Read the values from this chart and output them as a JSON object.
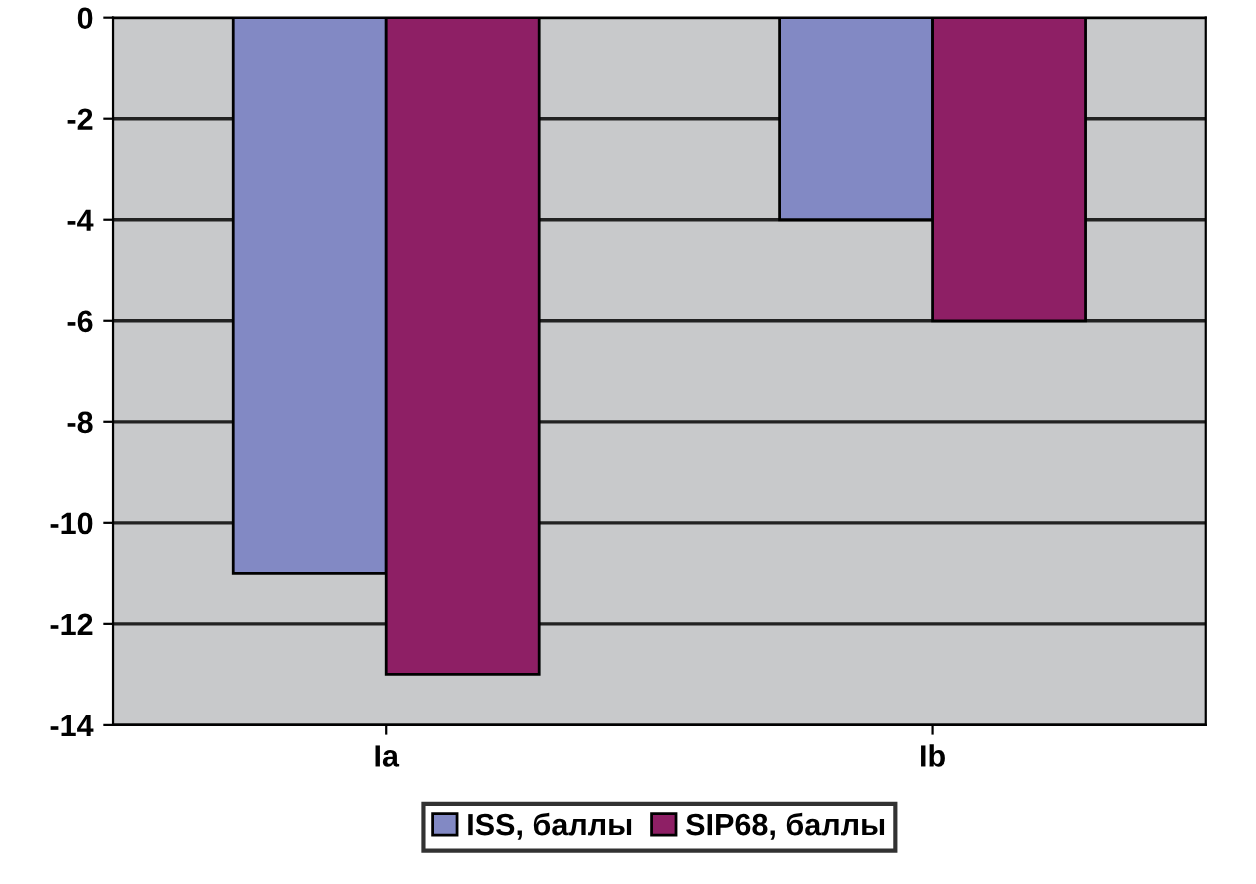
{
  "chart_data": {
    "type": "bar",
    "categories": [
      "Ia",
      "Ib"
    ],
    "series": [
      {
        "name": "ISS, баллы",
        "color": "#8289c4",
        "values": [
          -11,
          -4
        ]
      },
      {
        "name": "SIP68, баллы",
        "color": "#8e1f65",
        "values": [
          -13,
          -6
        ]
      }
    ],
    "ylim": [
      -14,
      0
    ],
    "yticks": [
      -14,
      -12,
      -10,
      -8,
      -6,
      -4,
      -2,
      0
    ],
    "grid": "y",
    "legend": "bottom"
  }
}
